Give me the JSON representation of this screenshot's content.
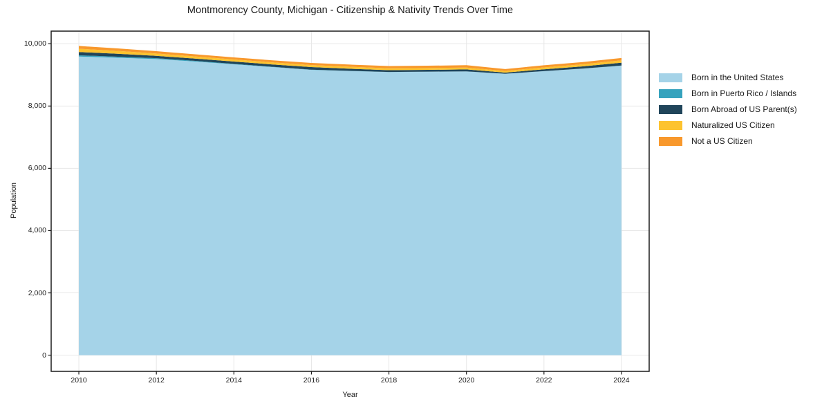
{
  "chart_data": {
    "type": "area",
    "stacked": true,
    "title": "Montmorency County, Michigan - Citizenship & Nativity Trends Over Time",
    "xlabel": "Year",
    "ylabel": "Population",
    "x": [
      2010,
      2011,
      2012,
      2013,
      2014,
      2015,
      2016,
      2017,
      2018,
      2019,
      2020,
      2021,
      2022,
      2023,
      2024
    ],
    "series": [
      {
        "name": "Born in the United States",
        "color": "#a5d3e8",
        "values": [
          9590,
          9550,
          9510,
          9430,
          9340,
          9250,
          9160,
          9125,
          9090,
          9100,
          9110,
          9035,
          9120,
          9200,
          9295
        ]
      },
      {
        "name": "Born in Puerto Rico / Islands",
        "color": "#35a2bd",
        "values": [
          40,
          35,
          28,
          20,
          14,
          10,
          8,
          5,
          4,
          3,
          3,
          2,
          2,
          3,
          6
        ]
      },
      {
        "name": "Born Abroad of US Parent(s)",
        "color": "#20455a",
        "values": [
          105,
          95,
          75,
          72,
          75,
          75,
          82,
          68,
          57,
          59,
          64,
          38,
          58,
          70,
          92
        ]
      },
      {
        "name": "Naturalized US Citizen",
        "color": "#fdc32f",
        "values": [
          105,
          90,
          74,
          70,
          67,
          67,
          66,
          63,
          60,
          59,
          58,
          52,
          60,
          68,
          76
        ]
      },
      {
        "name": "Not a US Citizen",
        "color": "#f8982c",
        "values": [
          90,
          80,
          75,
          70,
          66,
          66,
          68,
          70,
          73,
          74,
          76,
          60,
          70,
          70,
          74
        ]
      }
    ],
    "x_ticks": [
      2010,
      2012,
      2014,
      2016,
      2018,
      2020,
      2022,
      2024
    ],
    "x_tick_labels": [
      "2010",
      "2012",
      "2014",
      "2016",
      "2018",
      "2020",
      "2022",
      "2024"
    ],
    "y_ticks": [
      0,
      2000,
      4000,
      6000,
      8000,
      10000
    ],
    "y_tick_labels": [
      "0",
      "2,000",
      "4,000",
      "6,000",
      "8,000",
      "10,000"
    ],
    "xlim": [
      2009.2857,
      2024.7143
    ],
    "ylim": [
      -520,
      10406
    ],
    "grid": true,
    "legend_position": "right"
  },
  "colors": {
    "grid": "#e7e7e7",
    "spine": "#1a1a1a",
    "background": "#ffffff"
  }
}
